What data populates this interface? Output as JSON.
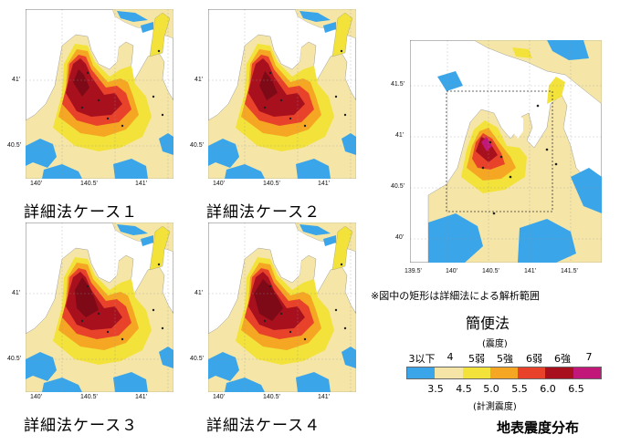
{
  "panels": [
    {
      "caption": "詳細法ケース１",
      "ticks_x": [
        "140'",
        "140.5'",
        "141'"
      ],
      "ticks_y": [
        "41'",
        "40.5'"
      ]
    },
    {
      "caption": "詳細法ケース２",
      "ticks_x": [
        "140'",
        "140.5'",
        "141'"
      ],
      "ticks_y": [
        "41'",
        "40.5'"
      ]
    },
    {
      "caption": "詳細法ケース３",
      "ticks_x": [
        "140'",
        "140.5'",
        "141'"
      ],
      "ticks_y": [
        "41'",
        "40.5'"
      ]
    },
    {
      "caption": "詳細法ケース４",
      "ticks_x": [
        "140'",
        "140.5'",
        "141'"
      ],
      "ticks_y": [
        "41'",
        "40.5'"
      ]
    }
  ],
  "overview": {
    "ticks_x": [
      "139.5'",
      "140'",
      "140.5'",
      "141'",
      "141.5'"
    ],
    "ticks_y": [
      "41.5'",
      "41'",
      "40.5'",
      "40'"
    ],
    "note": "※図中の矩形は詳細法による解析範囲",
    "title": "簡便法"
  },
  "legend": {
    "class_header": "(震度)",
    "classes": [
      "3以下",
      "4",
      "5弱",
      "5強",
      "6弱",
      "6強",
      "7"
    ],
    "values": [
      "3.5",
      "4.5",
      "5.0",
      "5.5",
      "6.0",
      "6.5"
    ],
    "value_header": "(計測震度)",
    "colors": [
      "#3aa5e8",
      "#f5e6a8",
      "#f2e23a",
      "#f5a623",
      "#e8432a",
      "#a8101e",
      "#c2187a"
    ]
  },
  "figure_title": "地表震度分布"
}
